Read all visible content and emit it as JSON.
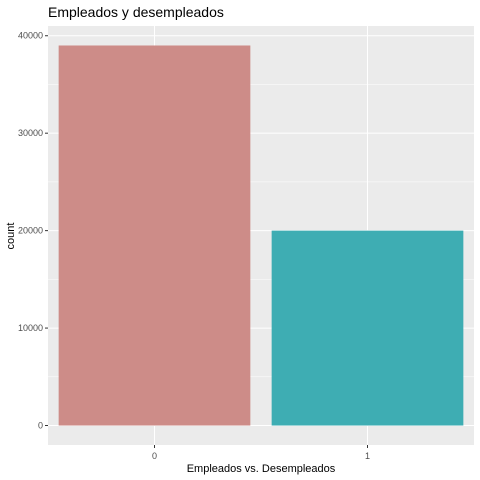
{
  "chart_data": {
    "type": "bar",
    "title": "Empleados y desempleados",
    "xlabel": "Empleados vs. Desempleados",
    "ylabel": "count",
    "categories": [
      "0",
      "1"
    ],
    "values": [
      39000,
      20000
    ],
    "colors": [
      "#cd8c88",
      "#3eadb3"
    ],
    "ylim": [
      -2000,
      41000
    ],
    "yticks": [
      0,
      10000,
      20000,
      30000,
      40000
    ],
    "ytick_labels": [
      "0",
      "10000",
      "20000",
      "30000",
      "40000"
    ],
    "grid": true,
    "panel_background": "#ebebeb",
    "grid_color": "#ffffff",
    "legend": "none"
  }
}
